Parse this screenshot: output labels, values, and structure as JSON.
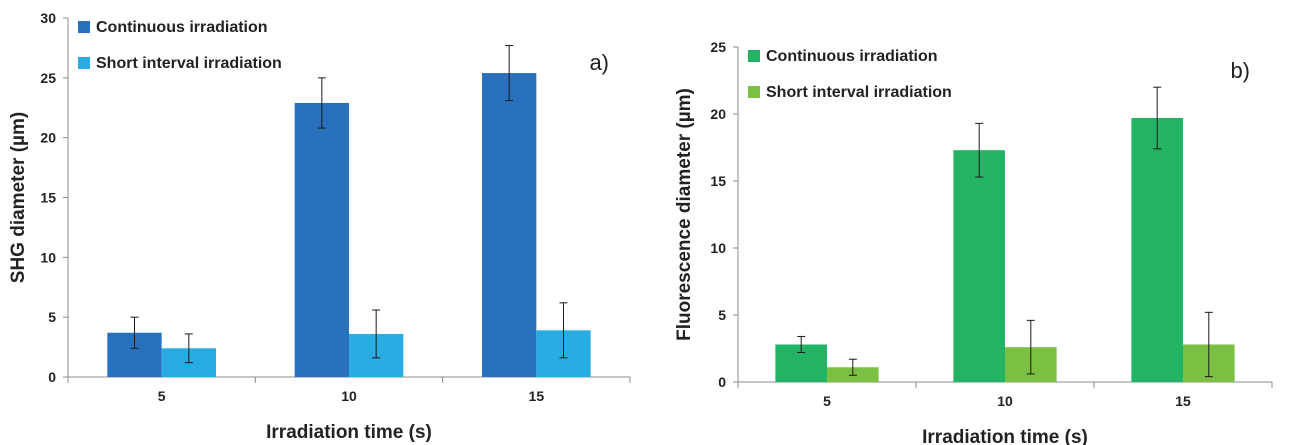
{
  "chart_data": [
    {
      "type": "bar",
      "panel_label": "a)",
      "title": "",
      "xlabel": "Irradiation time (s)",
      "ylabel": "SHG diameter (µm)",
      "categories": [
        "5",
        "10",
        "15"
      ],
      "ylim": [
        0,
        30
      ],
      "yticks": [
        0,
        5,
        10,
        15,
        20,
        25,
        30
      ],
      "grid": false,
      "legend_position": "top-left",
      "series": [
        {
          "name": "Continuous irradiation",
          "color": "#2a71bd",
          "values": [
            3.7,
            22.9,
            25.4
          ],
          "errors": [
            1.3,
            2.1,
            2.3
          ]
        },
        {
          "name": "Short interval irradiation",
          "color": "#28ace2",
          "values": [
            2.4,
            3.6,
            3.9
          ],
          "errors": [
            1.2,
            2.0,
            2.3
          ]
        }
      ]
    },
    {
      "type": "bar",
      "panel_label": "b)",
      "title": "",
      "xlabel": "Irradiation time (s)",
      "ylabel": "Fluorescence diameter (µm)",
      "categories": [
        "5",
        "10",
        "15"
      ],
      "ylim": [
        0,
        25
      ],
      "yticks": [
        0,
        5,
        10,
        15,
        20,
        25
      ],
      "grid": false,
      "legend_position": "top-left",
      "series": [
        {
          "name": "Continuous irradiation",
          "color": "#22b464",
          "values": [
            2.8,
            17.3,
            19.7
          ],
          "errors": [
            0.6,
            2.0,
            2.3
          ]
        },
        {
          "name": "Short interval irradiation",
          "color": "#7bc043",
          "values": [
            1.1,
            2.6,
            2.8
          ],
          "errors": [
            0.6,
            2.0,
            2.4
          ]
        }
      ]
    }
  ]
}
